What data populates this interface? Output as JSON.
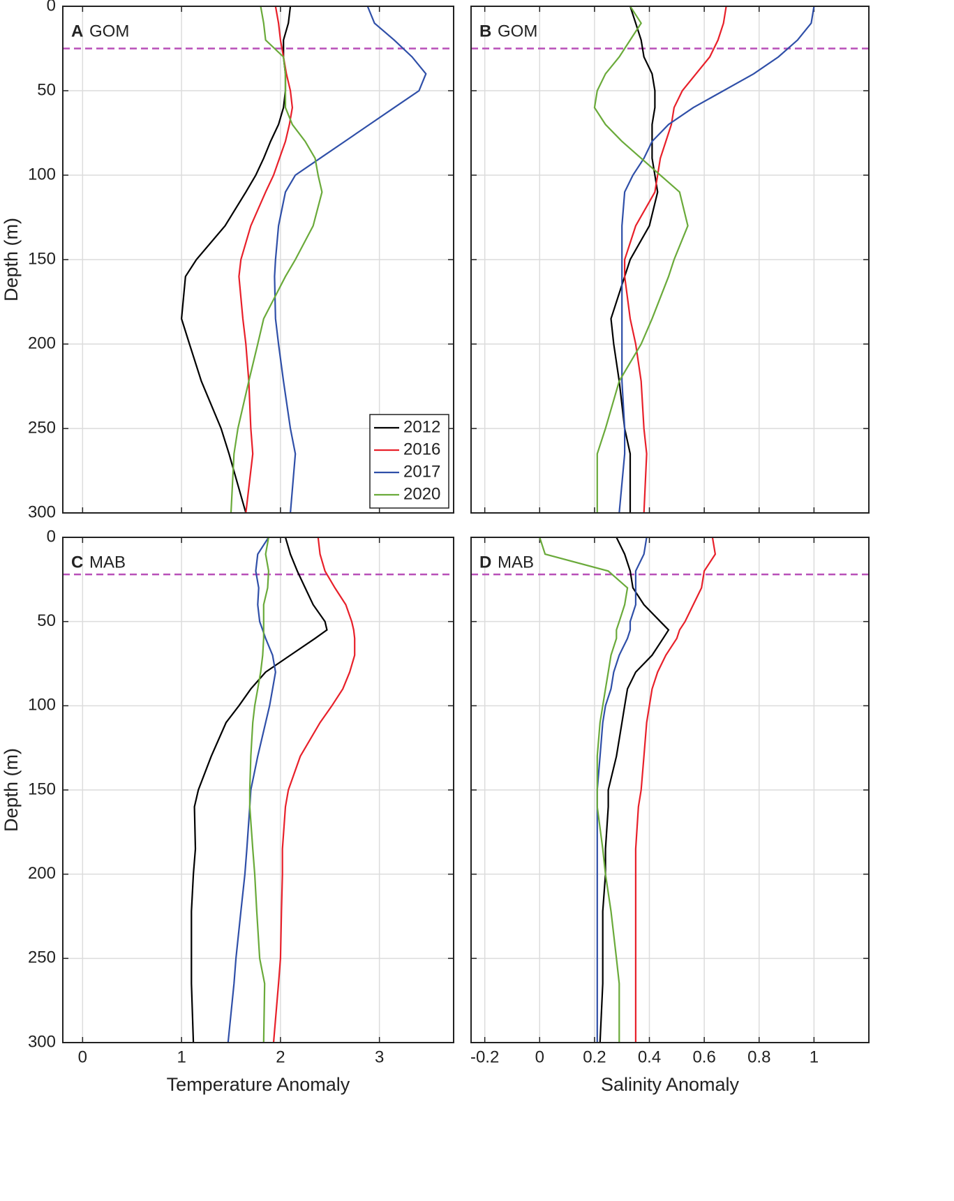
{
  "chart_data": [
    {
      "type": "line",
      "panel_letter": "A",
      "region": "GOM",
      "ylabel": "Depth (m)",
      "y": [
        0,
        10,
        20,
        30,
        40,
        50,
        60,
        70,
        80,
        90,
        100,
        110,
        130,
        150,
        160,
        185,
        200,
        222,
        250,
        265,
        300
      ],
      "xlim": [
        -0.2,
        3.75
      ],
      "ylim": [
        300,
        0
      ],
      "xticks": [
        0,
        1,
        2,
        3
      ],
      "yticks": [
        0,
        50,
        100,
        150,
        200,
        250,
        300
      ],
      "xtick_labels": false,
      "ytick_labels": true,
      "grid": true,
      "legend": "lower right",
      "reference_depth": 25,
      "reference_color": "#b84fb8",
      "series": [
        {
          "name": "2012",
          "color": "#000000",
          "values": [
            2.1,
            2.08,
            2.03,
            2.03,
            2.05,
            2.05,
            2.03,
            1.98,
            1.9,
            1.83,
            1.75,
            1.65,
            1.44,
            1.15,
            1.04,
            1.0,
            1.08,
            1.2,
            1.4,
            1.48,
            1.65
          ]
        },
        {
          "name": "2016",
          "color": "#e8202a",
          "values": [
            1.95,
            1.98,
            2.0,
            2.03,
            2.06,
            2.1,
            2.12,
            2.09,
            2.05,
            1.99,
            1.93,
            1.85,
            1.7,
            1.6,
            1.58,
            1.62,
            1.65,
            1.68,
            1.7,
            1.72,
            1.65
          ]
        },
        {
          "name": "2017",
          "color": "#2f4fa8",
          "values": [
            2.88,
            2.95,
            3.15,
            3.33,
            3.47,
            3.4,
            3.15,
            2.9,
            2.65,
            2.4,
            2.15,
            2.05,
            1.98,
            1.95,
            1.94,
            1.95,
            1.98,
            2.03,
            2.1,
            2.15,
            2.1
          ]
        },
        {
          "name": "2020",
          "color": "#6aaa3a",
          "values": [
            1.8,
            1.83,
            1.85,
            2.03,
            2.05,
            2.05,
            2.05,
            2.12,
            2.25,
            2.35,
            2.38,
            2.42,
            2.33,
            2.15,
            2.05,
            1.83,
            1.77,
            1.68,
            1.57,
            1.53,
            1.5
          ]
        }
      ]
    },
    {
      "type": "line",
      "panel_letter": "B",
      "region": "GOM",
      "y": [
        0,
        10,
        20,
        30,
        40,
        50,
        60,
        70,
        80,
        90,
        100,
        110,
        130,
        150,
        160,
        185,
        200,
        222,
        250,
        265,
        300
      ],
      "xlim": [
        -0.25,
        1.2
      ],
      "ylim": [
        300,
        0
      ],
      "xticks": [
        -0.2,
        0,
        0.2,
        0.4,
        0.6,
        0.8,
        1
      ],
      "yticks": [
        0,
        50,
        100,
        150,
        200,
        250,
        300
      ],
      "xtick_labels": false,
      "ytick_labels": false,
      "grid": true,
      "reference_depth": 25,
      "reference_color": "#b84fb8",
      "series": [
        {
          "color": "#000000",
          "values": [
            0.33,
            0.35,
            0.37,
            0.38,
            0.41,
            0.42,
            0.42,
            0.41,
            0.41,
            0.41,
            0.42,
            0.43,
            0.4,
            0.33,
            0.31,
            0.26,
            0.27,
            0.29,
            0.31,
            0.33,
            0.33
          ]
        },
        {
          "color": "#e8202a",
          "values": [
            0.68,
            0.67,
            0.65,
            0.62,
            0.57,
            0.52,
            0.49,
            0.48,
            0.46,
            0.44,
            0.43,
            0.42,
            0.35,
            0.31,
            0.31,
            0.33,
            0.35,
            0.37,
            0.38,
            0.39,
            0.38
          ]
        },
        {
          "color": "#2f4fa8",
          "values": [
            1.0,
            0.99,
            0.94,
            0.87,
            0.78,
            0.67,
            0.56,
            0.47,
            0.41,
            0.38,
            0.34,
            0.31,
            0.3,
            0.3,
            0.3,
            0.3,
            0.3,
            0.3,
            0.31,
            0.31,
            0.29
          ]
        },
        {
          "color": "#6aaa3a",
          "values": [
            0.33,
            0.37,
            0.33,
            0.29,
            0.24,
            0.21,
            0.2,
            0.24,
            0.3,
            0.37,
            0.44,
            0.51,
            0.54,
            0.49,
            0.47,
            0.41,
            0.37,
            0.29,
            0.24,
            0.21,
            0.21
          ]
        }
      ]
    },
    {
      "type": "line",
      "panel_letter": "C",
      "region": "MAB",
      "ylabel": "Depth (m)",
      "xlabel": "Temperature Anomaly",
      "y": [
        0,
        10,
        20,
        30,
        40,
        50,
        55,
        60,
        70,
        80,
        90,
        100,
        110,
        130,
        150,
        160,
        185,
        200,
        222,
        250,
        265,
        300
      ],
      "xlim": [
        -0.2,
        3.75
      ],
      "ylim": [
        300,
        0
      ],
      "xticks": [
        0,
        1,
        2,
        3
      ],
      "yticks": [
        0,
        50,
        100,
        150,
        200,
        250,
        300
      ],
      "xtick_labels": true,
      "ytick_labels": true,
      "grid": true,
      "reference_depth": 22,
      "reference_color": "#b84fb8",
      "series": [
        {
          "color": "#000000",
          "values": [
            2.05,
            2.1,
            2.17,
            2.25,
            2.33,
            2.45,
            2.47,
            2.35,
            2.1,
            1.85,
            1.7,
            1.58,
            1.45,
            1.3,
            1.17,
            1.13,
            1.14,
            1.12,
            1.1,
            1.1,
            1.1,
            1.12
          ]
        },
        {
          "color": "#e8202a",
          "values": [
            2.38,
            2.4,
            2.45,
            2.55,
            2.66,
            2.72,
            2.74,
            2.75,
            2.75,
            2.7,
            2.63,
            2.52,
            2.4,
            2.2,
            2.08,
            2.05,
            2.02,
            2.02,
            2.01,
            2.0,
            1.98,
            1.93
          ]
        },
        {
          "color": "#2f4fa8",
          "values": [
            1.88,
            1.77,
            1.75,
            1.78,
            1.77,
            1.79,
            1.82,
            1.85,
            1.92,
            1.95,
            1.92,
            1.89,
            1.85,
            1.77,
            1.7,
            1.69,
            1.66,
            1.64,
            1.6,
            1.55,
            1.53,
            1.47
          ]
        },
        {
          "color": "#6aaa3a",
          "values": [
            1.88,
            1.85,
            1.88,
            1.87,
            1.83,
            1.83,
            1.83,
            1.83,
            1.82,
            1.8,
            1.77,
            1.74,
            1.72,
            1.7,
            1.69,
            1.69,
            1.72,
            1.74,
            1.76,
            1.79,
            1.84,
            1.83
          ]
        }
      ]
    },
    {
      "type": "line",
      "panel_letter": "D",
      "region": "MAB",
      "xlabel": "Salinity Anomaly",
      "y": [
        0,
        10,
        20,
        30,
        40,
        50,
        55,
        60,
        70,
        80,
        90,
        100,
        110,
        130,
        150,
        160,
        185,
        200,
        222,
        250,
        265,
        300
      ],
      "xlim": [
        -0.25,
        1.2
      ],
      "ylim": [
        300,
        0
      ],
      "xticks": [
        -0.2,
        0,
        0.2,
        0.4,
        0.6,
        0.8,
        1
      ],
      "yticks": [
        0,
        50,
        100,
        150,
        200,
        250,
        300
      ],
      "xtick_labels": true,
      "ytick_labels": false,
      "grid": true,
      "reference_depth": 22,
      "reference_color": "#b84fb8",
      "series": [
        {
          "color": "#000000",
          "values": [
            0.28,
            0.31,
            0.33,
            0.34,
            0.38,
            0.44,
            0.47,
            0.45,
            0.41,
            0.35,
            0.32,
            0.31,
            0.3,
            0.28,
            0.25,
            0.25,
            0.24,
            0.24,
            0.23,
            0.23,
            0.23,
            0.22
          ]
        },
        {
          "color": "#e8202a",
          "values": [
            0.63,
            0.64,
            0.6,
            0.59,
            0.56,
            0.53,
            0.51,
            0.5,
            0.46,
            0.43,
            0.41,
            0.4,
            0.39,
            0.38,
            0.37,
            0.36,
            0.35,
            0.35,
            0.35,
            0.35,
            0.35,
            0.35
          ]
        },
        {
          "color": "#2f4fa8",
          "values": [
            0.39,
            0.38,
            0.35,
            0.35,
            0.35,
            0.33,
            0.33,
            0.32,
            0.29,
            0.27,
            0.26,
            0.24,
            0.23,
            0.22,
            0.21,
            0.21,
            0.21,
            0.21,
            0.21,
            0.21,
            0.21,
            0.21
          ]
        },
        {
          "color": "#6aaa3a",
          "values": [
            0.0,
            0.02,
            0.25,
            0.32,
            0.31,
            0.29,
            0.28,
            0.28,
            0.26,
            0.25,
            0.24,
            0.23,
            0.22,
            0.21,
            0.21,
            0.21,
            0.23,
            0.24,
            0.26,
            0.28,
            0.29,
            0.29
          ]
        }
      ]
    }
  ]
}
